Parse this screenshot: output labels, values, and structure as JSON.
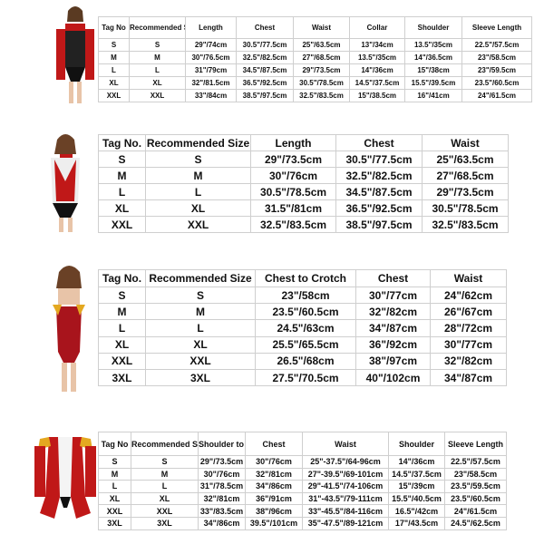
{
  "tables": [
    {
      "header": [
        "Tag No",
        "Recommended Size",
        "Length",
        "Chest",
        "Waist",
        "Collar",
        "Shoulder",
        "Sleeve Length"
      ],
      "rows": [
        [
          "S",
          "S",
          "29\"/74cm",
          "30.5\"/77.5cm",
          "25\"/63.5cm",
          "13\"/34cm",
          "13.5\"/35cm",
          "22.5\"/57.5cm"
        ],
        [
          "M",
          "M",
          "30\"/76.5cm",
          "32.5\"/82.5cm",
          "27\"/68.5cm",
          "13.5\"/35cm",
          "14\"/36.5cm",
          "23\"/58.5cm"
        ],
        [
          "L",
          "L",
          "31\"/79cm",
          "34.5\"/87.5cm",
          "29\"/73.5cm",
          "14\"/36cm",
          "15\"/38cm",
          "23\"/59.5cm"
        ],
        [
          "XL",
          "XL",
          "32\"/81.5cm",
          "36.5\"/92.5cm",
          "30.5\"/78.5cm",
          "14.5\"/37.5cm",
          "15.5\"/39.5cm",
          "23.5\"/60.5cm"
        ],
        [
          "XXL",
          "XXL",
          "33\"/84cm",
          "38.5\"/97.5cm",
          "32.5\"/83.5cm",
          "15\"/38.5cm",
          "16\"/41cm",
          "24\"/61.5cm"
        ]
      ]
    },
    {
      "header": [
        "Tag No.",
        "Recommended Size",
        "Length",
        "Chest",
        "Waist"
      ],
      "rows": [
        [
          "S",
          "S",
          "29\"/73.5cm",
          "30.5\"/77.5cm",
          "25\"/63.5cm"
        ],
        [
          "M",
          "M",
          "30\"/76cm",
          "32.5\"/82.5cm",
          "27\"/68.5cm"
        ],
        [
          "L",
          "L",
          "30.5\"/78.5cm",
          "34.5\"/87.5cm",
          "29\"/73.5cm"
        ],
        [
          "XL",
          "XL",
          "31.5\"/81cm",
          "36.5\"/92.5cm",
          "30.5\"/78.5cm"
        ],
        [
          "XXL",
          "XXL",
          "32.5\"/83.5cm",
          "38.5\"/97.5cm",
          "32.5\"/83.5cm"
        ]
      ]
    },
    {
      "header": [
        "Tag No.",
        "Recommended Size",
        "Chest to Crotch",
        "Chest",
        "Waist"
      ],
      "rows": [
        [
          "S",
          "S",
          "23\"/58cm",
          "30\"/77cm",
          "24\"/62cm"
        ],
        [
          "M",
          "M",
          "23.5\"/60.5cm",
          "32\"/82cm",
          "26\"/67cm"
        ],
        [
          "L",
          "L",
          "24.5\"/63cm",
          "34\"/87cm",
          "28\"/72cm"
        ],
        [
          "XL",
          "XL",
          "25.5\"/65.5cm",
          "36\"/92cm",
          "30\"/77cm"
        ],
        [
          "XXL",
          "XXL",
          "26.5\"/68cm",
          "38\"/97cm",
          "32\"/82cm"
        ],
        [
          "3XL",
          "3XL",
          "27.5\"/70.5cm",
          "40\"/102cm",
          "34\"/87cm"
        ]
      ]
    },
    {
      "header": [
        "Tag No",
        "Recommended Size",
        "Shoulder to Crotch",
        "Chest",
        "Waist",
        "Shoulder",
        "Sleeve Length"
      ],
      "rows": [
        [
          "S",
          "S",
          "29\"/73.5cm",
          "30\"/76cm",
          "25\"-37.5\"/64-96cm",
          "14\"/36cm",
          "22.5\"/57.5cm"
        ],
        [
          "M",
          "M",
          "30\"/76cm",
          "32\"/81cm",
          "27\"-39.5\"/69-101cm",
          "14.5\"/37.5cm",
          "23\"/58.5cm"
        ],
        [
          "L",
          "L",
          "31\"/78.5cm",
          "34\"/86cm",
          "29\"-41.5\"/74-106cm",
          "15\"/39cm",
          "23.5\"/59.5cm"
        ],
        [
          "XL",
          "XL",
          "32\"/81cm",
          "36\"/91cm",
          "31\"-43.5\"/79-111cm",
          "15.5\"/40.5cm",
          "23.5\"/60.5cm"
        ],
        [
          "XXL",
          "XXL",
          "33\"/83.5cm",
          "38\"/96cm",
          "33\"-45.5\"/84-116cm",
          "16.5\"/42cm",
          "24\"/61.5cm"
        ],
        [
          "3XL",
          "3XL",
          "34\"/86cm",
          "39.5\"/101cm",
          "35\"-47.5\"/89-121cm",
          "17\"/43.5cm",
          "24.5\"/62.5cm"
        ]
      ]
    }
  ]
}
